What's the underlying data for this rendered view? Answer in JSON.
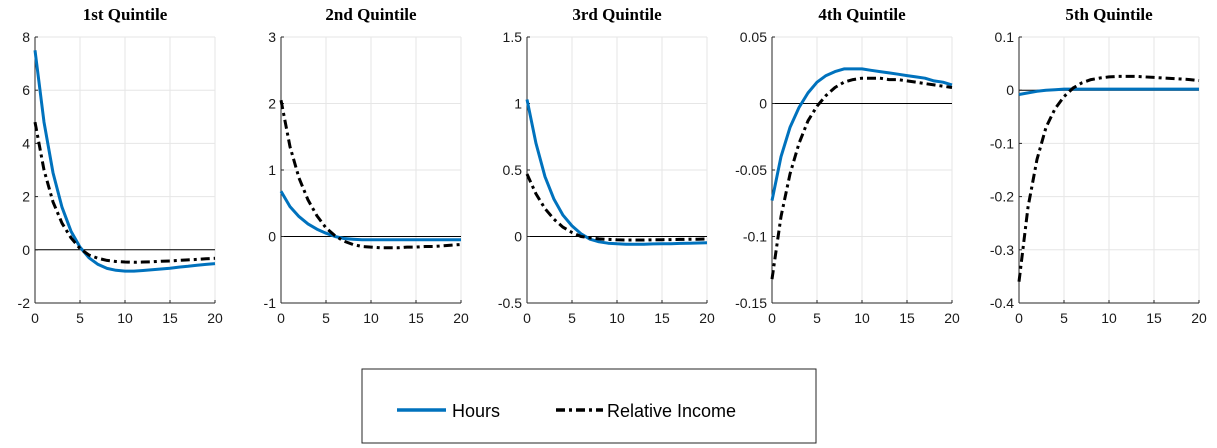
{
  "colors": {
    "hours": "#0072BD",
    "relative_income": "#000000",
    "grid": "#e6e6e6",
    "axis": "#262626"
  },
  "legend": {
    "placement": "bottom-center",
    "items": [
      {
        "label": "Hours",
        "style": "solid",
        "color": "#0072BD"
      },
      {
        "label": "Relative Income",
        "style": "dash-dot",
        "color": "#000000"
      }
    ]
  },
  "chart_data": [
    {
      "type": "line",
      "title": "1st Quintile",
      "xlabel": "",
      "ylabel": "",
      "xlim": [
        0,
        20
      ],
      "ylim": [
        -2,
        8
      ],
      "xticks": [
        0,
        5,
        10,
        15,
        20
      ],
      "xtick_labels": [
        "0",
        "5",
        "10",
        "15",
        "20"
      ],
      "yticks": [
        -2,
        0,
        2,
        4,
        6,
        8
      ],
      "ytick_labels": [
        "-2",
        "0",
        "2",
        "4",
        "6",
        "8"
      ],
      "grid": true,
      "zero_line": true,
      "x": [
        0,
        1,
        2,
        3,
        4,
        5,
        6,
        7,
        8,
        9,
        10,
        11,
        12,
        13,
        14,
        15,
        16,
        17,
        18,
        19,
        20
      ],
      "series": [
        {
          "name": "Hours",
          "values": [
            7.5,
            4.8,
            2.9,
            1.6,
            0.7,
            0.1,
            -0.3,
            -0.55,
            -0.7,
            -0.77,
            -0.8,
            -0.8,
            -0.78,
            -0.75,
            -0.72,
            -0.69,
            -0.65,
            -0.62,
            -0.58,
            -0.55,
            -0.52
          ]
        },
        {
          "name": "Relative Income",
          "values": [
            4.8,
            3.0,
            1.8,
            1.0,
            0.45,
            0.05,
            -0.2,
            -0.32,
            -0.4,
            -0.44,
            -0.46,
            -0.47,
            -0.46,
            -0.45,
            -0.43,
            -0.42,
            -0.4,
            -0.38,
            -0.36,
            -0.34,
            -0.32
          ]
        }
      ]
    },
    {
      "type": "line",
      "title": "2nd Quintile",
      "xlabel": "",
      "ylabel": "",
      "xlim": [
        0,
        20
      ],
      "ylim": [
        -1,
        3
      ],
      "xticks": [
        0,
        5,
        10,
        15,
        20
      ],
      "xtick_labels": [
        "0",
        "5",
        "10",
        "15",
        "20"
      ],
      "yticks": [
        -1,
        0,
        1,
        2,
        3
      ],
      "ytick_labels": [
        "-1",
        "0",
        "1",
        "2",
        "3"
      ],
      "grid": true,
      "zero_line": true,
      "x": [
        0,
        1,
        2,
        3,
        4,
        5,
        6,
        7,
        8,
        9,
        10,
        11,
        12,
        13,
        14,
        15,
        16,
        17,
        18,
        19,
        20
      ],
      "series": [
        {
          "name": "Hours",
          "values": [
            0.68,
            0.45,
            0.3,
            0.19,
            0.11,
            0.05,
            0.0,
            -0.03,
            -0.04,
            -0.05,
            -0.05,
            -0.05,
            -0.05,
            -0.05,
            -0.05,
            -0.05,
            -0.05,
            -0.05,
            -0.05,
            -0.05,
            -0.05
          ]
        },
        {
          "name": "Relative Income",
          "values": [
            2.05,
            1.35,
            0.88,
            0.55,
            0.31,
            0.13,
            0.01,
            -0.07,
            -0.12,
            -0.15,
            -0.16,
            -0.17,
            -0.17,
            -0.17,
            -0.16,
            -0.16,
            -0.15,
            -0.15,
            -0.14,
            -0.13,
            -0.12
          ]
        }
      ]
    },
    {
      "type": "line",
      "title": "3rd Quintile",
      "xlabel": "",
      "ylabel": "",
      "xlim": [
        0,
        20
      ],
      "ylim": [
        -0.5,
        1.5
      ],
      "xticks": [
        0,
        5,
        10,
        15,
        20
      ],
      "xtick_labels": [
        "0",
        "5",
        "10",
        "15",
        "20"
      ],
      "yticks": [
        -0.5,
        0,
        0.5,
        1,
        1.5
      ],
      "ytick_labels": [
        "-0.5",
        "0",
        "0.5",
        "1",
        "1.5"
      ],
      "grid": true,
      "zero_line": true,
      "x": [
        0,
        1,
        2,
        3,
        4,
        5,
        6,
        7,
        8,
        9,
        10,
        11,
        12,
        13,
        14,
        15,
        16,
        17,
        18,
        19,
        20
      ],
      "series": [
        {
          "name": "Hours",
          "values": [
            1.03,
            0.7,
            0.45,
            0.28,
            0.16,
            0.08,
            0.02,
            -0.02,
            -0.04,
            -0.05,
            -0.055,
            -0.058,
            -0.058,
            -0.058,
            -0.056,
            -0.055,
            -0.054,
            -0.052,
            -0.05,
            -0.049,
            -0.047
          ]
        },
        {
          "name": "Relative Income",
          "values": [
            0.47,
            0.32,
            0.21,
            0.13,
            0.07,
            0.03,
            0.0,
            -0.01,
            -0.018,
            -0.022,
            -0.025,
            -0.026,
            -0.026,
            -0.026,
            -0.025,
            -0.024,
            -0.023,
            -0.022,
            -0.021,
            -0.02,
            -0.019
          ]
        }
      ]
    },
    {
      "type": "line",
      "title": "4th Quintile",
      "xlabel": "",
      "ylabel": "",
      "xlim": [
        0,
        20
      ],
      "ylim": [
        -0.15,
        0.05
      ],
      "xticks": [
        0,
        5,
        10,
        15,
        20
      ],
      "xtick_labels": [
        "0",
        "5",
        "10",
        "15",
        "20"
      ],
      "yticks": [
        -0.15,
        -0.1,
        -0.05,
        0,
        0.05
      ],
      "ytick_labels": [
        "-0.15",
        "-0.1",
        "-0.05",
        "0",
        "0.05"
      ],
      "grid": true,
      "zero_line": true,
      "x": [
        0,
        1,
        2,
        3,
        4,
        5,
        6,
        7,
        8,
        9,
        10,
        11,
        12,
        13,
        14,
        15,
        16,
        17,
        18,
        19,
        20
      ],
      "series": [
        {
          "name": "Hours",
          "values": [
            -0.073,
            -0.04,
            -0.018,
            -0.003,
            0.008,
            0.016,
            0.021,
            0.024,
            0.026,
            0.026,
            0.026,
            0.025,
            0.024,
            0.023,
            0.022,
            0.021,
            0.02,
            0.019,
            0.017,
            0.016,
            0.014
          ]
        },
        {
          "name": "Relative Income",
          "values": [
            -0.132,
            -0.085,
            -0.053,
            -0.03,
            -0.013,
            -0.002,
            0.006,
            0.012,
            0.016,
            0.018,
            0.019,
            0.019,
            0.019,
            0.018,
            0.018,
            0.017,
            0.016,
            0.015,
            0.014,
            0.013,
            0.012
          ]
        }
      ]
    },
    {
      "type": "line",
      "title": "5th Quintile",
      "xlabel": "",
      "ylabel": "",
      "xlim": [
        0,
        20
      ],
      "ylim": [
        -0.4,
        0.1
      ],
      "xticks": [
        0,
        5,
        10,
        15,
        20
      ],
      "xtick_labels": [
        "0",
        "5",
        "10",
        "15",
        "20"
      ],
      "yticks": [
        -0.4,
        -0.3,
        -0.2,
        -0.1,
        0,
        0.1
      ],
      "ytick_labels": [
        "-0.4",
        "-0.3",
        "-0.2",
        "-0.1",
        "0",
        "0.1"
      ],
      "grid": true,
      "zero_line": true,
      "x": [
        0,
        1,
        2,
        3,
        4,
        5,
        6,
        7,
        8,
        9,
        10,
        11,
        12,
        13,
        14,
        15,
        16,
        17,
        18,
        19,
        20
      ],
      "series": [
        {
          "name": "Hours",
          "values": [
            -0.008,
            -0.005,
            -0.002,
            0.0,
            0.001,
            0.002,
            0.002,
            0.002,
            0.002,
            0.002,
            0.002,
            0.002,
            0.002,
            0.002,
            0.002,
            0.002,
            0.002,
            0.002,
            0.002,
            0.002,
            0.002
          ]
        },
        {
          "name": "Relative Income",
          "values": [
            -0.36,
            -0.22,
            -0.13,
            -0.07,
            -0.035,
            -0.012,
            0.004,
            0.014,
            0.02,
            0.023,
            0.025,
            0.026,
            0.026,
            0.026,
            0.025,
            0.024,
            0.023,
            0.022,
            0.021,
            0.02,
            0.018
          ]
        }
      ]
    }
  ]
}
